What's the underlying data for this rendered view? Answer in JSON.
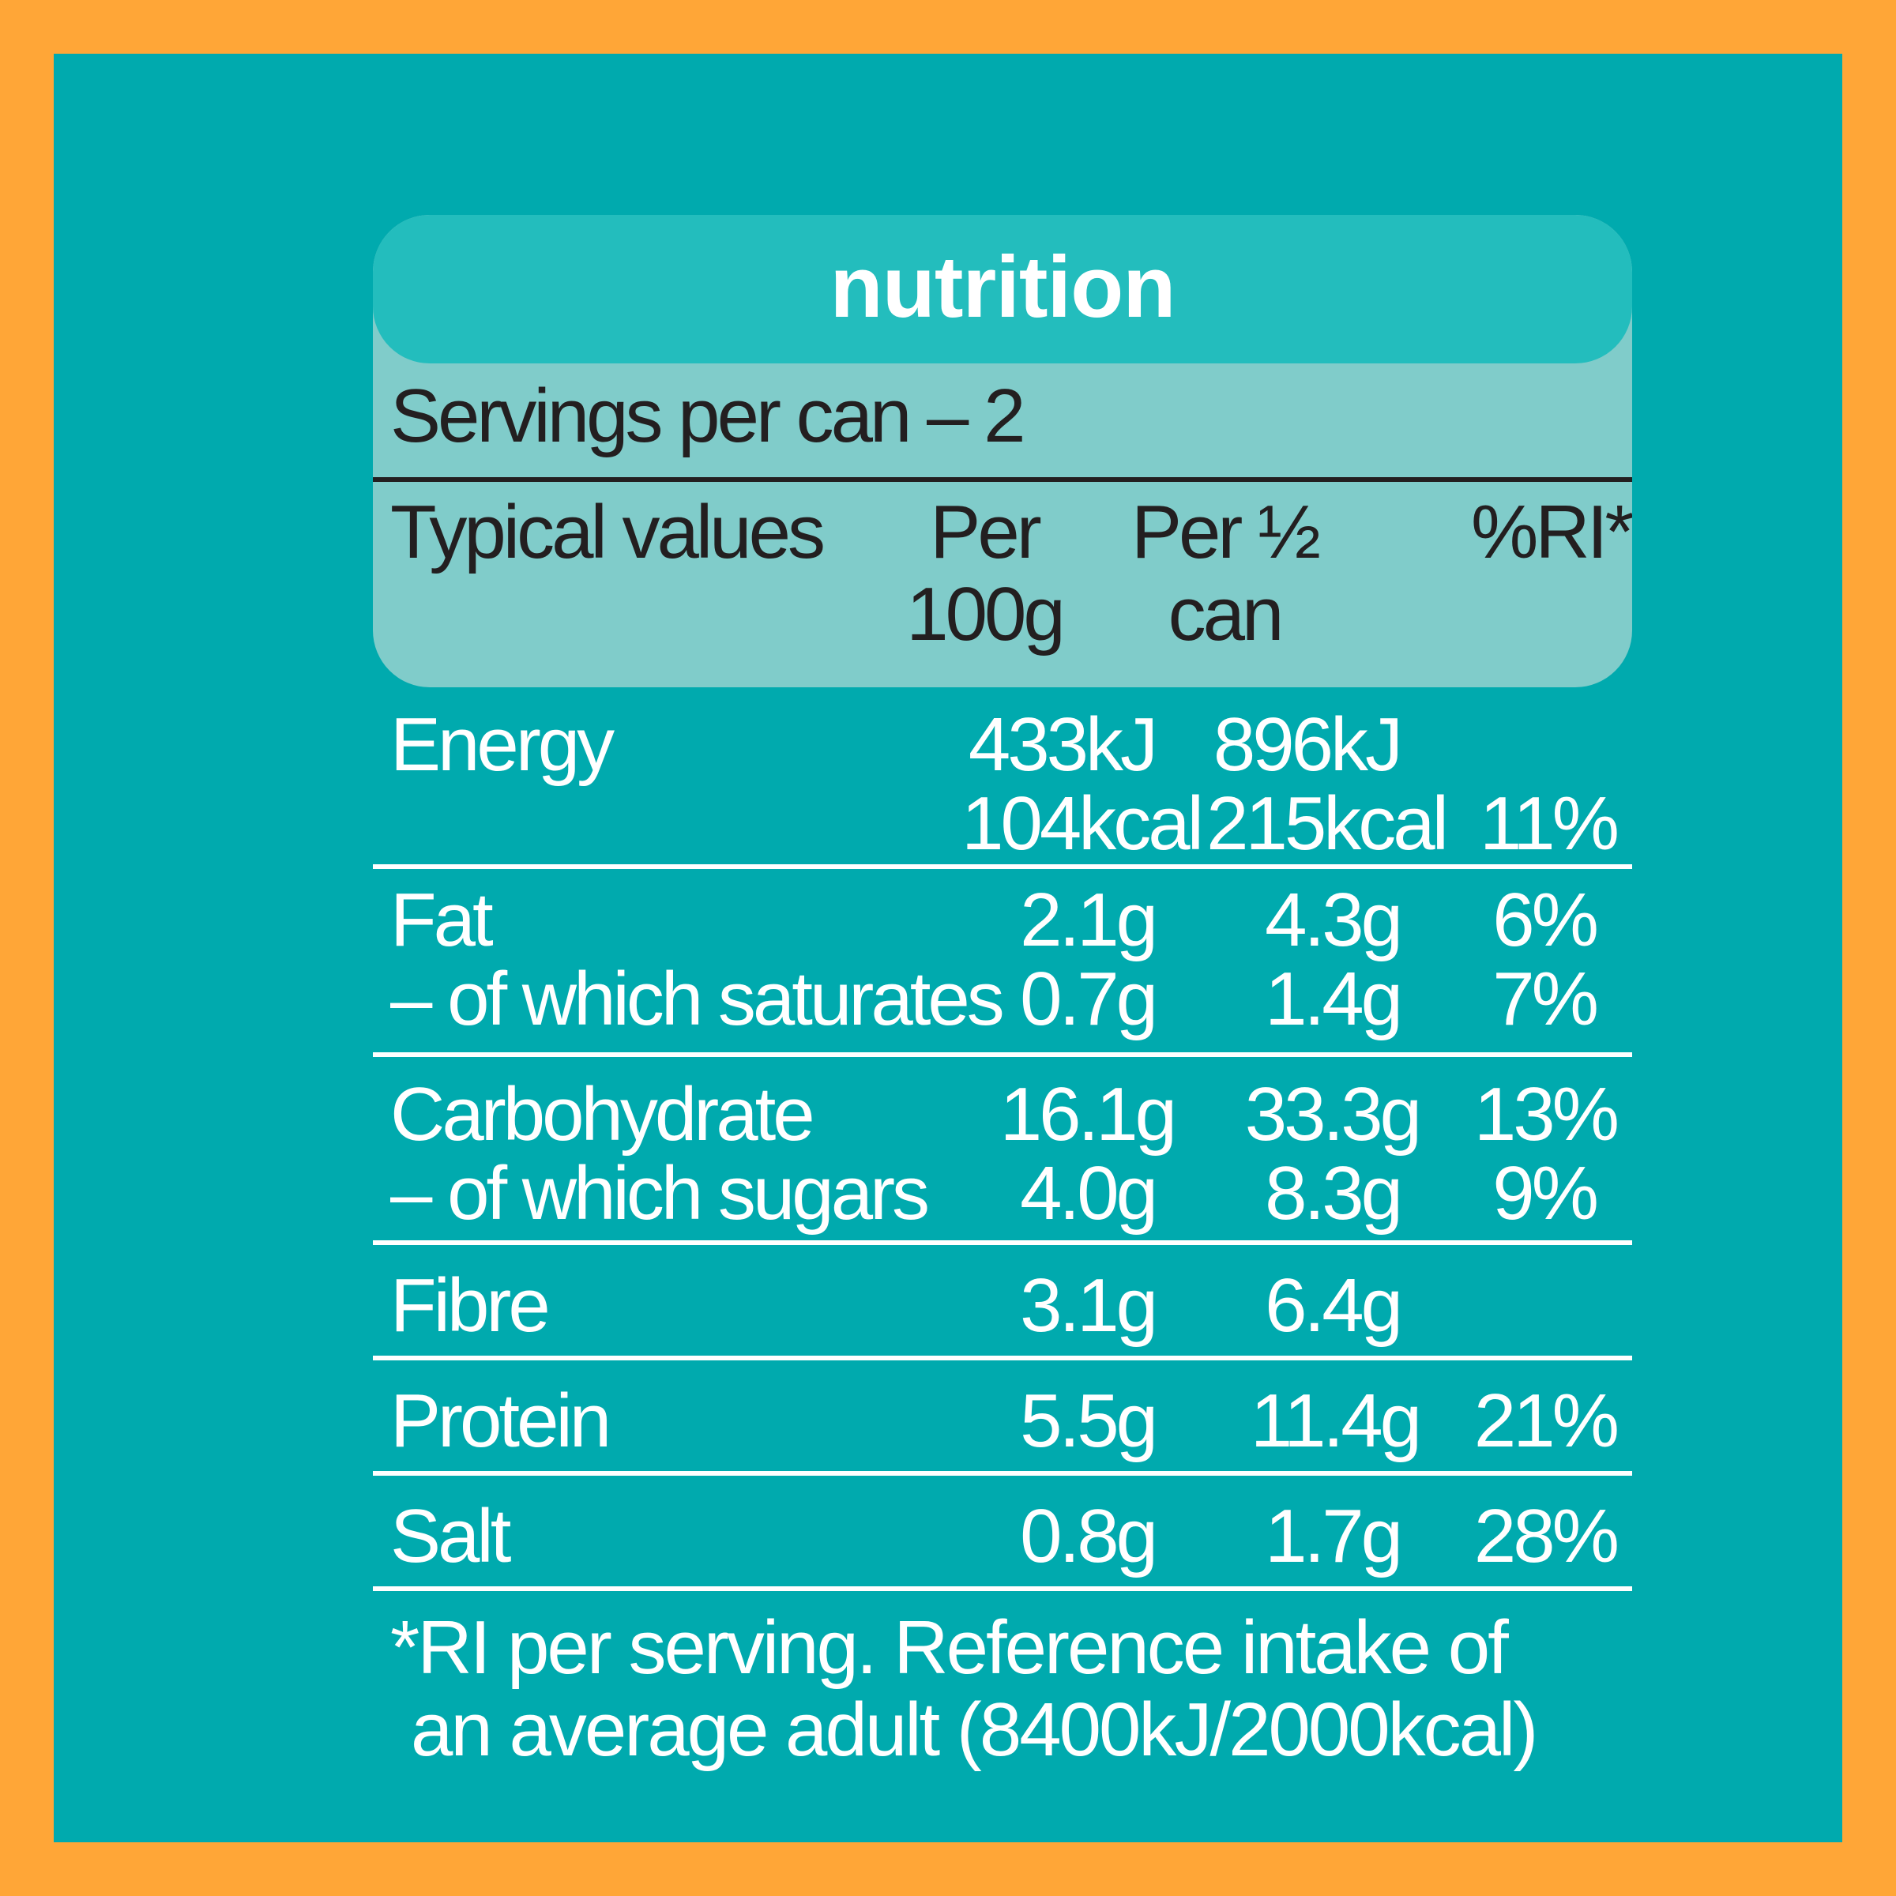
{
  "label": {
    "title": "nutrition",
    "servings": "Servings per can – 2",
    "columns": {
      "label": "Typical values",
      "per100_line1": "Per",
      "per100_line2": "100g",
      "perhalf_line1": "Per ½",
      "perhalf_line2": "can",
      "ri": "%RI*"
    },
    "rows": {
      "energy": {
        "label": "Energy",
        "per100_kj": "433kJ",
        "perhalf_kj": "896kJ",
        "per100_kcal": "104kcal",
        "perhalf_kcal": "215kcal",
        "ri": "11%"
      },
      "fat": {
        "label": "Fat",
        "per100": "2.1g",
        "perhalf": "4.3g",
        "ri": "6%"
      },
      "saturates": {
        "label": "– of which saturates",
        "per100": "0.7g",
        "perhalf": "1.4g",
        "ri": "7%"
      },
      "carbohydrate": {
        "label": "Carbohydrate",
        "per100": "16.1g",
        "perhalf": "33.3g",
        "ri": "13%"
      },
      "sugars": {
        "label": "– of which sugars",
        "per100": "4.0g",
        "perhalf": "8.3g",
        "ri": "9%"
      },
      "fibre": {
        "label": "Fibre",
        "per100": "3.1g",
        "perhalf": "6.4g"
      },
      "protein": {
        "label": "Protein",
        "per100": "5.5g",
        "perhalf": "11.4g",
        "ri": "21%"
      },
      "salt": {
        "label": "Salt",
        "per100": "0.8g",
        "perhalf": "1.7g",
        "ri": "28%"
      }
    },
    "footnote_line1": "*RI per serving. Reference intake of",
    "footnote_line2": "an average adult (8400kJ/2000kcal)"
  },
  "colors": {
    "border": "#FFA637",
    "panel": "#00AAAE",
    "title_band": "#23BDBD",
    "header_box": "#80CCCA",
    "dark_text": "#231F20",
    "light_text": "#FFFFFF"
  }
}
